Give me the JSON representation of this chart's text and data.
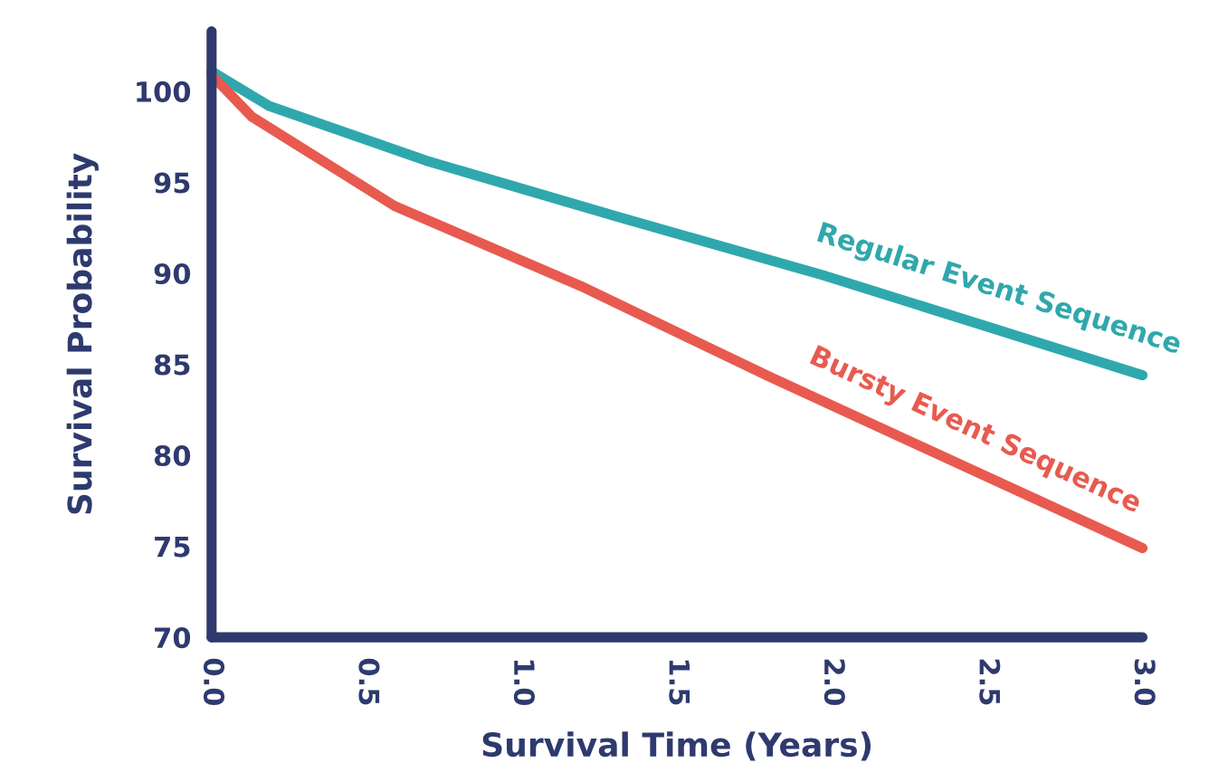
{
  "chart_data": {
    "type": "line",
    "xlabel": "Survival Time (Years)",
    "ylabel": "Survival Probability",
    "xlim": [
      0,
      3
    ],
    "xticks": [
      {
        "value": 0,
        "label": "0.0"
      },
      0.5,
      {
        "value": 1,
        "label": "1.0"
      },
      1.5,
      {
        "value": 2,
        "label": "2.0"
      },
      2.5,
      {
        "value": 3,
        "label": "3.0"
      }
    ],
    "ylim": [
      70,
      103.3
    ],
    "yticks": [
      70,
      75,
      80,
      85,
      90,
      95,
      100
    ],
    "grid": false,
    "legend": false,
    "marker": "none",
    "line_style": "solid",
    "series": [
      {
        "name": "Regular Event Sequence",
        "color": "#2fa8ad",
        "x": [
          0,
          0.185,
          0.69,
          1.31,
          1.97,
          3.0
        ],
        "values": [
          101.1,
          99.2,
          96.2,
          93.1,
          89.9,
          84.4
        ]
      },
      {
        "name": "Bursty Event Sequence",
        "color": "#e85a4f",
        "x": [
          0,
          0.13,
          0.59,
          1.19,
          1.8,
          3.0
        ],
        "values": [
          100.9,
          98.6,
          93.7,
          89.3,
          84.3,
          74.9
        ]
      }
    ]
  }
}
